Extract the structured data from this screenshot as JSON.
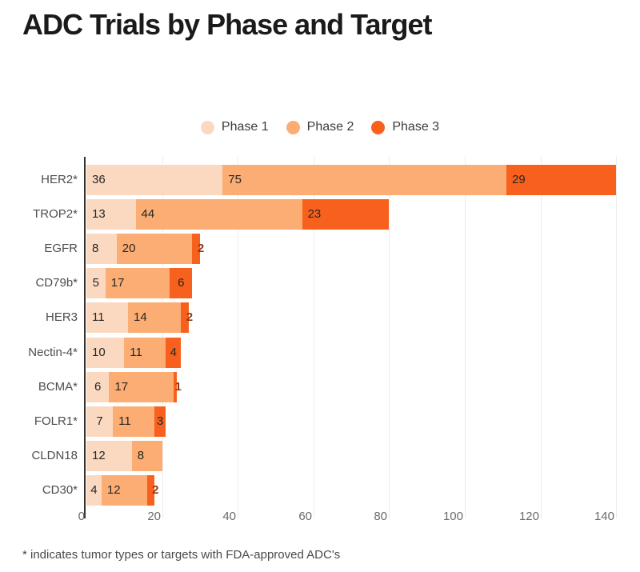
{
  "page": {
    "title": "ADC Trials by Phase and Target",
    "footnote": "* indicates tumor types or targets with FDA-approved ADC's"
  },
  "chart_data": {
    "type": "bar",
    "orientation": "horizontal",
    "stacked": true,
    "title": "ADC Trials by Phase and Target",
    "categories": [
      "HER2*",
      "TROP2*",
      "EGFR",
      "CD79b*",
      "HER3",
      "Nectin-4*",
      "BCMA*",
      "FOLR1*",
      "CLDN18",
      "CD30*"
    ],
    "series": [
      {
        "name": "Phase 1",
        "color": "#fbd9c0",
        "values": [
          36,
          13,
          8,
          5,
          11,
          10,
          6,
          7,
          12,
          4
        ]
      },
      {
        "name": "Phase 2",
        "color": "#fbad74",
        "values": [
          75,
          44,
          20,
          17,
          14,
          11,
          17,
          11,
          8,
          12
        ]
      },
      {
        "name": "Phase 3",
        "color": "#f8611d",
        "values": [
          29,
          23,
          2,
          6,
          2,
          4,
          1,
          3,
          0,
          2
        ]
      }
    ],
    "totals": [
      140,
      80,
      30,
      28,
      27,
      25,
      24,
      21,
      20,
      18
    ],
    "x_ticks": [
      0,
      20,
      40,
      60,
      80,
      100,
      120,
      140
    ],
    "xlim": [
      0,
      146
    ],
    "xlabel": "",
    "ylabel": "",
    "grid": "vertical",
    "legend_position": "top",
    "value_labels": "inside-start",
    "colors": {
      "title": "#1a1a1a",
      "legend_text": "#3b3b3b",
      "category": "#4d4d4d",
      "tick": "#6b6b6b",
      "axis_line": "#333333",
      "gridline": "#ececec",
      "label_inside": "#262626",
      "label_outside": "#8f380f",
      "footnote": "#4a4a4a"
    }
  }
}
